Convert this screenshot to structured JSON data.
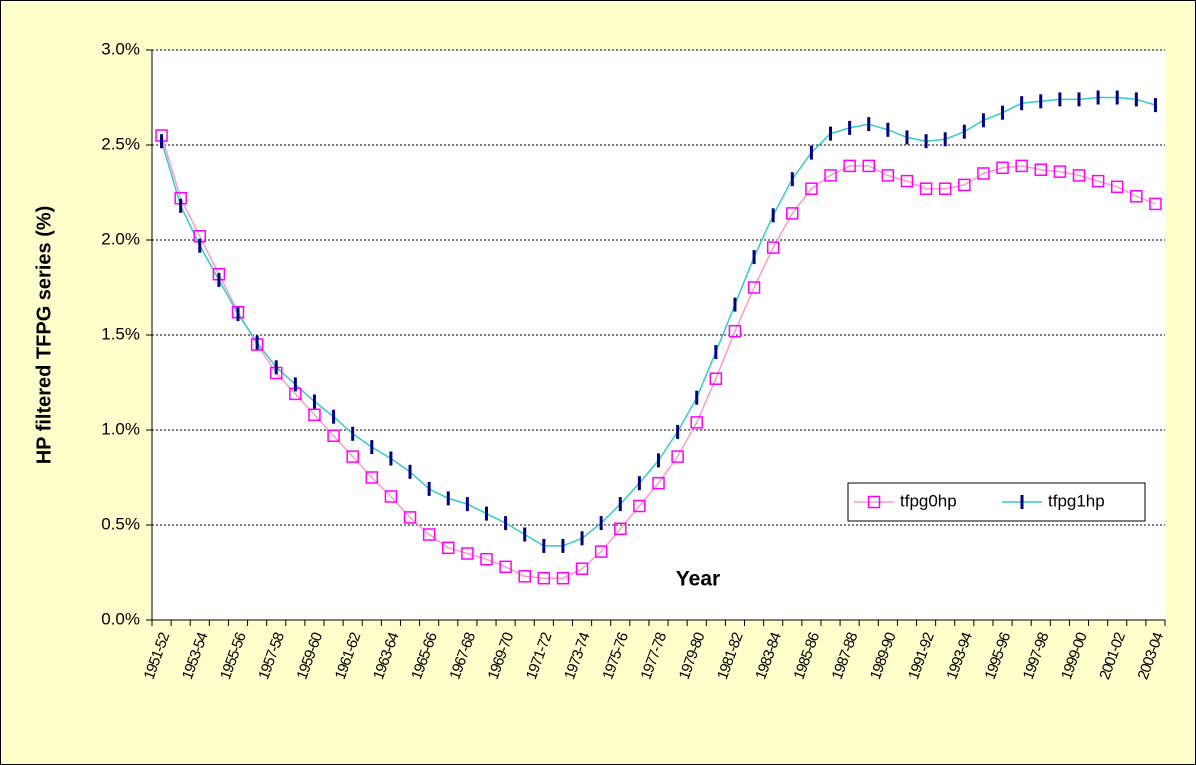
{
  "chart_data": {
    "type": "line",
    "xlabel": "Year",
    "ylabel": "HP filtered TFPG series (%)",
    "categories": [
      "1951-52",
      null,
      "1953-54",
      null,
      "1955-56",
      null,
      "1957-58",
      null,
      "1959-60",
      null,
      "1961-62",
      null,
      "1963-64",
      null,
      "1965-66",
      null,
      "1967-68",
      null,
      "1969-70",
      null,
      "1971-72",
      null,
      "1973-74",
      null,
      "1975-76",
      null,
      "1977-78",
      null,
      "1979-80",
      null,
      "1981-82",
      null,
      "1983-84",
      null,
      "1985-86",
      null,
      "1987-88",
      null,
      "1989-90",
      null,
      "1991-92",
      null,
      "1993-94",
      null,
      "1995-96",
      null,
      "1997-98",
      null,
      "1999-00",
      null,
      "2001-02",
      null,
      "2003-04"
    ],
    "series": [
      {
        "name": "tfpg0hp",
        "color": "#ff99cc",
        "marker": "square",
        "marker_color": "#ff00ff",
        "values": [
          2.55,
          2.22,
          2.02,
          1.82,
          1.62,
          1.45,
          1.3,
          1.19,
          1.08,
          0.97,
          0.86,
          0.75,
          0.65,
          0.54,
          0.45,
          0.38,
          0.35,
          0.32,
          0.28,
          0.23,
          0.22,
          0.22,
          0.27,
          0.36,
          0.48,
          0.6,
          0.72,
          0.86,
          1.04,
          1.27,
          1.52,
          1.75,
          1.96,
          2.14,
          2.27,
          2.34,
          2.39,
          2.39,
          2.34,
          2.31,
          2.27,
          2.27,
          2.29,
          2.35,
          2.38,
          2.39,
          2.37,
          2.36,
          2.34,
          2.31,
          2.28,
          2.23,
          2.19
        ]
      },
      {
        "name": "tfpg1hp",
        "color": "#33cccc",
        "marker": "dash",
        "marker_color": "#000080",
        "values": [
          2.52,
          2.18,
          1.97,
          1.79,
          1.61,
          1.46,
          1.33,
          1.24,
          1.15,
          1.07,
          0.98,
          0.91,
          0.85,
          0.78,
          0.69,
          0.64,
          0.61,
          0.56,
          0.51,
          0.45,
          0.39,
          0.39,
          0.43,
          0.51,
          0.61,
          0.72,
          0.84,
          0.99,
          1.17,
          1.41,
          1.66,
          1.91,
          2.13,
          2.32,
          2.46,
          2.56,
          2.59,
          2.61,
          2.58,
          2.54,
          2.52,
          2.53,
          2.57,
          2.63,
          2.67,
          2.72,
          2.73,
          2.74,
          2.74,
          2.75,
          2.75,
          2.74,
          2.71
        ]
      }
    ],
    "ylim": [
      0,
      3
    ],
    "yticks": [
      {
        "value": 0,
        "label": "0.0%"
      },
      {
        "value": 0.5,
        "label": "0.5%"
      },
      {
        "value": 1,
        "label": "1.0%"
      },
      {
        "value": 1.5,
        "label": "1.5%"
      },
      {
        "value": 2,
        "label": "2.0%"
      },
      {
        "value": 2.5,
        "label": "2.5%"
      },
      {
        "value": 3,
        "label": "3.0%"
      }
    ],
    "grid": true,
    "legend": "right"
  }
}
